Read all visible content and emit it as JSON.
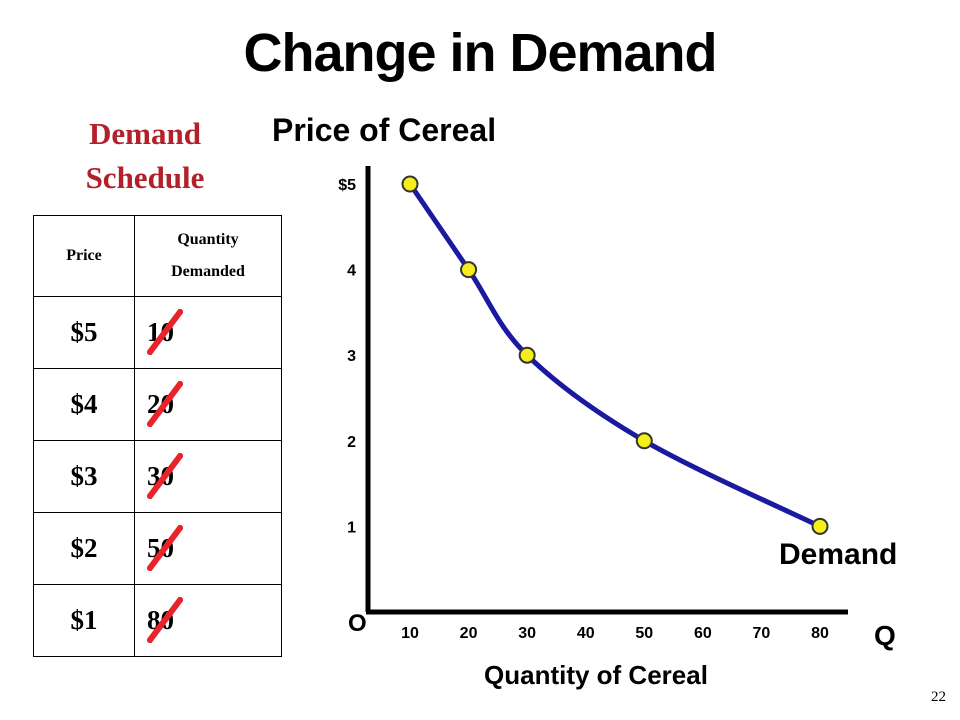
{
  "slide": {
    "title": "Change in Demand",
    "page_number": "22"
  },
  "schedule": {
    "title_line1": "Demand",
    "title_line2": "Schedule",
    "col_price": "Price",
    "col_qty_line1": "Quantity",
    "col_qty_line2": "Demanded",
    "rows": [
      {
        "price": "$5",
        "qty": "10"
      },
      {
        "price": "$4",
        "qty": "20"
      },
      {
        "price": "$3",
        "qty": "30"
      },
      {
        "price": "$2",
        "qty": "50"
      },
      {
        "price": "$1",
        "qty": "80"
      }
    ],
    "strike_color": "#e8232a"
  },
  "chart_data": {
    "type": "line",
    "title": "Price of Cereal",
    "xlabel": "Quantity of Cereal",
    "x_axis_letter": "Q",
    "origin_label": "O",
    "series_label": "Demand",
    "x_ticks": [
      "10",
      "20",
      "30",
      "40",
      "50",
      "60",
      "70",
      "80"
    ],
    "y_ticks": [
      "1",
      "2",
      "3",
      "4",
      "$5"
    ],
    "xlim": [
      0,
      80
    ],
    "ylim": [
      0,
      5
    ],
    "series": [
      {
        "x": [
          10,
          20,
          30,
          50,
          80
        ],
        "y": [
          5,
          4,
          3,
          2,
          1
        ]
      }
    ],
    "line_color": "#1a1aa0",
    "point_color": "#f5ee1a",
    "grid": false
  }
}
